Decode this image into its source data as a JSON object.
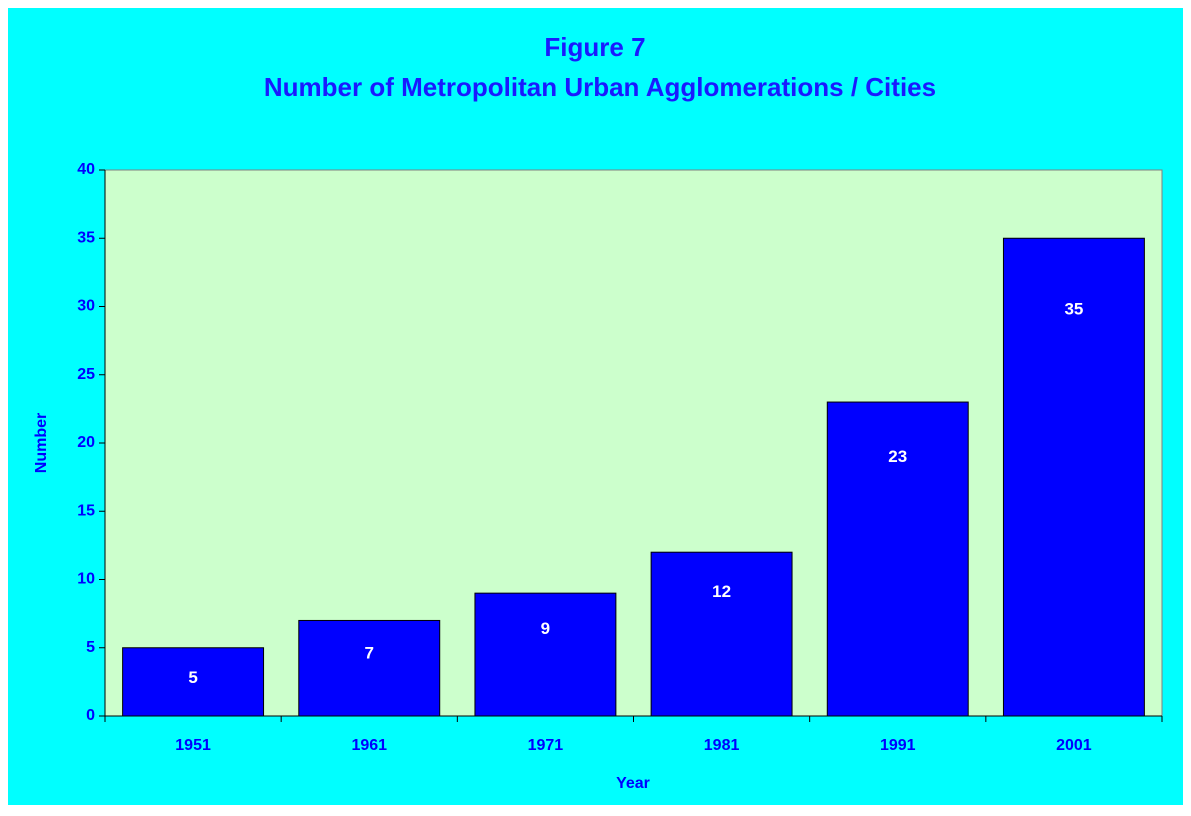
{
  "chart_data": {
    "type": "bar",
    "title": "Figure 7",
    "subtitle": "Number of Metropolitan Urban Agglomerations / Cities",
    "x_label": "Year",
    "y_label": "Number",
    "categories": [
      "1951",
      "1961",
      "1971",
      "1981",
      "1991",
      "2001"
    ],
    "values": [
      5,
      7,
      9,
      12,
      23,
      35
    ],
    "color": "#0000ff",
    "ylim": [
      0,
      40
    ],
    "yticks": [
      0,
      5,
      10,
      15,
      20,
      25,
      30,
      35,
      40
    ],
    "grid": false
  }
}
